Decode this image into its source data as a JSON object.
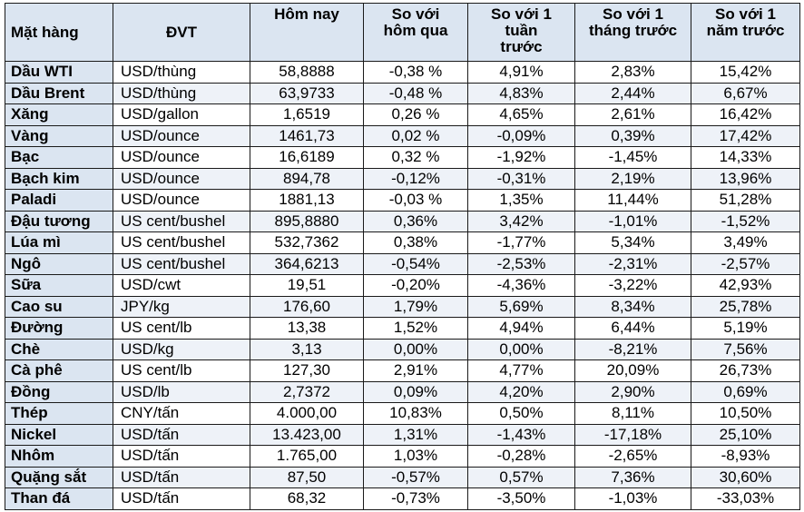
{
  "headers": {
    "item": "Mặt hàng",
    "unit": "ĐVT",
    "today": "Hôm nay",
    "vs_yesterday": [
      "So với",
      "hôm qua"
    ],
    "vs_week": [
      "So với 1",
      "tuần",
      "trước"
    ],
    "vs_month": [
      "So với 1",
      "tháng trước"
    ],
    "vs_year": [
      "So với 1",
      "năm trước"
    ]
  },
  "rows": [
    {
      "name": "Dầu WTI",
      "unit": "USD/thùng",
      "today": "58,8888",
      "d1": "-0,38 %",
      "w1": "4,91%",
      "m1": "2,83%",
      "y1": "15,42%"
    },
    {
      "name": "Dầu Brent",
      "unit": "USD/thùng",
      "today": "63,9733",
      "d1": "-0,48 %",
      "w1": "4,83%",
      "m1": "2,44%",
      "y1": "6,67%"
    },
    {
      "name": "Xăng",
      "unit": "USD/gallon",
      "today": "1,6519",
      "d1": "0,26 %",
      "w1": "4,65%",
      "m1": "2,61%",
      "y1": "16,42%"
    },
    {
      "name": "Vàng",
      "unit": "USD/ounce",
      "today": "1461,73",
      "d1": "0,02 %",
      "w1": "-0,09%",
      "m1": "0,39%",
      "y1": "17,42%"
    },
    {
      "name": "Bạc",
      "unit": "USD/ounce",
      "today": "16,6189",
      "d1": "0,32 %",
      "w1": "-1,92%",
      "m1": "-1,45%",
      "y1": "14,33%"
    },
    {
      "name": "Bạch kim",
      "unit": "USD/ounce",
      "today": "894,78",
      "d1": "-0,12%",
      "w1": "-0,31%",
      "m1": "2,19%",
      "y1": "13,96%"
    },
    {
      "name": "Paladi",
      "unit": "USD/ounce",
      "today": "1881,13",
      "d1": "-0,03 %",
      "w1": "1,35%",
      "m1": "11,44%",
      "y1": "51,28%"
    },
    {
      "name": "Đậu tương",
      "unit": "US cent/bushel",
      "today": "895,8880",
      "d1": "0,36%",
      "w1": "3,42%",
      "m1": "-1,01%",
      "y1": "-1,52%"
    },
    {
      "name": "Lúa mì",
      "unit": "US cent/bushel",
      "today": "532,7362",
      "d1": "0,38%",
      "w1": "-1,77%",
      "m1": "5,34%",
      "y1": "3,49%"
    },
    {
      "name": "Ngô",
      "unit": "US cent/bushel",
      "today": "364,6213",
      "d1": "-0,54%",
      "w1": "-2,53%",
      "m1": "-2,31%",
      "y1": "-2,57%"
    },
    {
      "name": "Sữa",
      "unit": "USD/cwt",
      "today": "19,51",
      "d1": "-0,20%",
      "w1": "-4,36%",
      "m1": "-3,22%",
      "y1": "42,93%"
    },
    {
      "name": "Cao su",
      "unit": "JPY/kg",
      "today": "176,60",
      "d1": "1,79%",
      "w1": "5,69%",
      "m1": "8,34%",
      "y1": "25,78%"
    },
    {
      "name": "Đường",
      "unit": "US cent/lb",
      "today": "13,38",
      "d1": "1,52%",
      "w1": "4,94%",
      "m1": "6,44%",
      "y1": "5,19%"
    },
    {
      "name": "Chè",
      "unit": "USD/kg",
      "today": "3,13",
      "d1": "0,00%",
      "w1": "0,00%",
      "m1": "-8,21%",
      "y1": "7,56%"
    },
    {
      "name": "Cà phê",
      "unit": "US cent/lb",
      "today": "127,30",
      "d1": "2,91%",
      "w1": "4,77%",
      "m1": "20,09%",
      "y1": "26,73%"
    },
    {
      "name": "Đồng",
      "unit": "USD/lb",
      "today": "2,7372",
      "d1": "0,09%",
      "w1": "4,20%",
      "m1": "2,90%",
      "y1": "0,69%"
    },
    {
      "name": "Thép",
      "unit": "CNY/tấn",
      "today": "4.000,00",
      "d1": "10,83%",
      "w1": "0,50%",
      "m1": "8,11%",
      "y1": "10,50%"
    },
    {
      "name": "Nickel",
      "unit": "USD/tấn",
      "today": "13.423,00",
      "d1": "1,31%",
      "w1": "-1,43%",
      "m1": "-17,18%",
      "y1": "25,10%"
    },
    {
      "name": "Nhôm",
      "unit": "USD/tấn",
      "today": "1.765,00",
      "d1": "1,03%",
      "w1": "-0,28%",
      "m1": "-2,65%",
      "y1": "-8,93%"
    },
    {
      "name": "Quặng sắt",
      "unit": "USD/tấn",
      "today": "87,50",
      "d1": "-0,57%",
      "w1": "0,57%",
      "m1": "7,36%",
      "y1": "30,60%"
    },
    {
      "name": "Than đá",
      "unit": "USD/tấn",
      "today": "68,32",
      "d1": "-0,73%",
      "w1": "-3,50%",
      "m1": "-1,03%",
      "y1": "-33,03%"
    }
  ],
  "colors": {
    "header_bg": "#dbe5f1",
    "name_col_bg": "#dbe5f1",
    "alt_row_bg": "#eef2f8",
    "border": "#1a1a1a"
  }
}
